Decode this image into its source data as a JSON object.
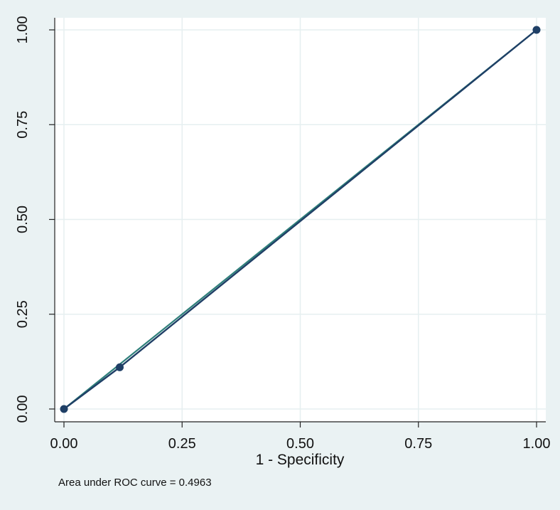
{
  "chart_data": {
    "type": "line",
    "title": "",
    "xlabel": "1 - Specificity",
    "ylabel": "",
    "xlim": [
      0,
      1
    ],
    "ylim": [
      0,
      1
    ],
    "x_ticks": [
      "0.00",
      "0.25",
      "0.50",
      "0.75",
      "1.00"
    ],
    "y_ticks": [
      "0.00",
      "0.25",
      "0.50",
      "0.75",
      "1.00"
    ],
    "grid": true,
    "series": [
      {
        "points": [
          {
            "x": 0.0,
            "y": 0.0
          },
          {
            "x": 0.118,
            "y": 0.11
          },
          {
            "x": 1.0,
            "y": 1.0
          }
        ],
        "markers": true,
        "color": "#1f3f66"
      },
      {
        "points": [
          {
            "x": 0.0,
            "y": 0.0
          },
          {
            "x": 1.0,
            "y": 1.0
          }
        ],
        "markers": false,
        "color": "#2e7f7a"
      }
    ],
    "note": "Area under ROC curve = 0.4963"
  },
  "colors": {
    "background": "#eaf2f3",
    "plot_area": "#ffffff",
    "grid": "#e6eff0",
    "roc_curve": "#1f3f66",
    "reference_line": "#2e7f7a"
  }
}
